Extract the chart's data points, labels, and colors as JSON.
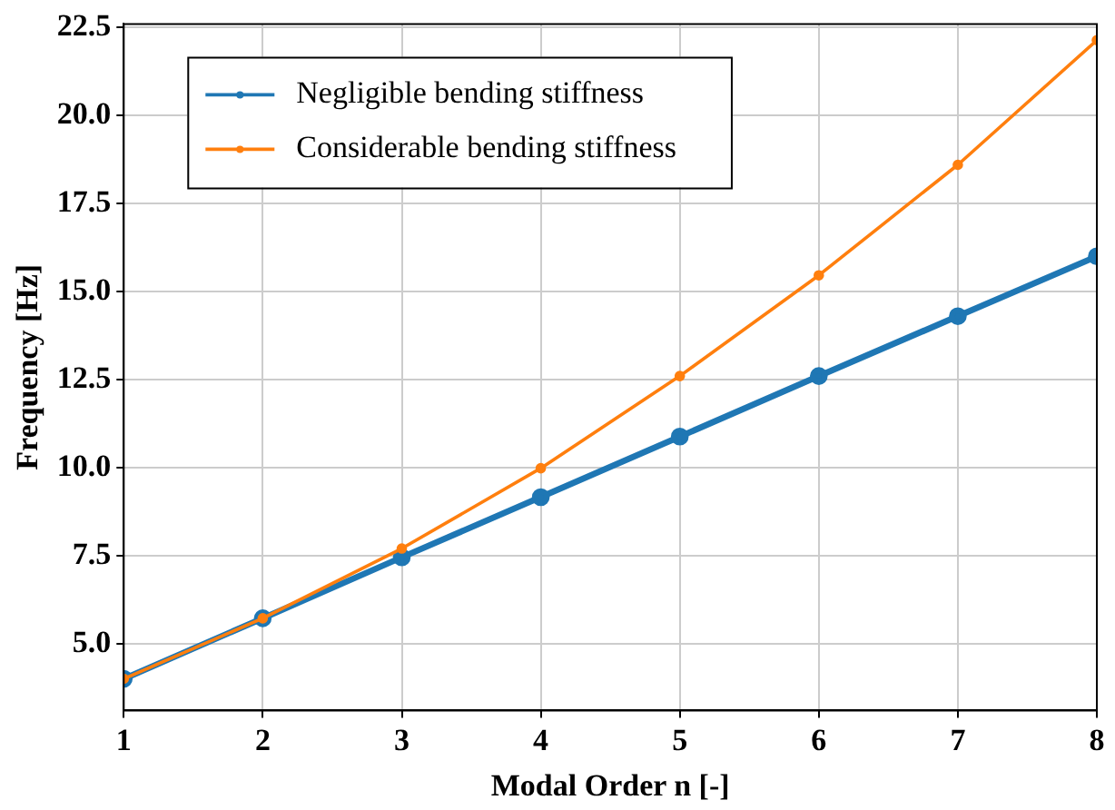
{
  "chart_data": {
    "type": "line",
    "xlabel": "Modal Order n [-]",
    "ylabel": "Frequency [Hz]",
    "x": [
      1,
      2,
      3,
      4,
      5,
      6,
      7,
      8
    ],
    "series": [
      {
        "name": "Negligible bending stiffness",
        "color": "#1f77b4",
        "values": [
          4.0,
          5.72,
          7.45,
          9.16,
          10.88,
          12.6,
          14.3,
          16.0
        ]
      },
      {
        "name": "Considerable bending stiffness",
        "color": "#ff7f0e",
        "values": [
          4.0,
          5.72,
          7.7,
          9.98,
          12.6,
          15.46,
          18.6,
          22.14
        ]
      }
    ],
    "xlim": [
      1,
      8
    ],
    "xticks": [
      1,
      2,
      3,
      4,
      5,
      6,
      7,
      8
    ],
    "ylim": [
      3.1,
      22.6
    ],
    "yticks": [
      {
        "value": 5,
        "label": "5.0"
      },
      {
        "value": 7.5,
        "label": "7.5"
      },
      {
        "value": 10,
        "label": "10.0"
      },
      {
        "value": 12.5,
        "label": "12.5"
      },
      {
        "value": 15,
        "label": "15.0"
      },
      {
        "value": 17.5,
        "label": "17.5"
      },
      {
        "value": 20,
        "label": "20.0"
      },
      {
        "value": 22.5,
        "label": "22.5"
      }
    ],
    "grid": true,
    "legend": "top left",
    "marker": "circle",
    "line_style": "solid"
  }
}
